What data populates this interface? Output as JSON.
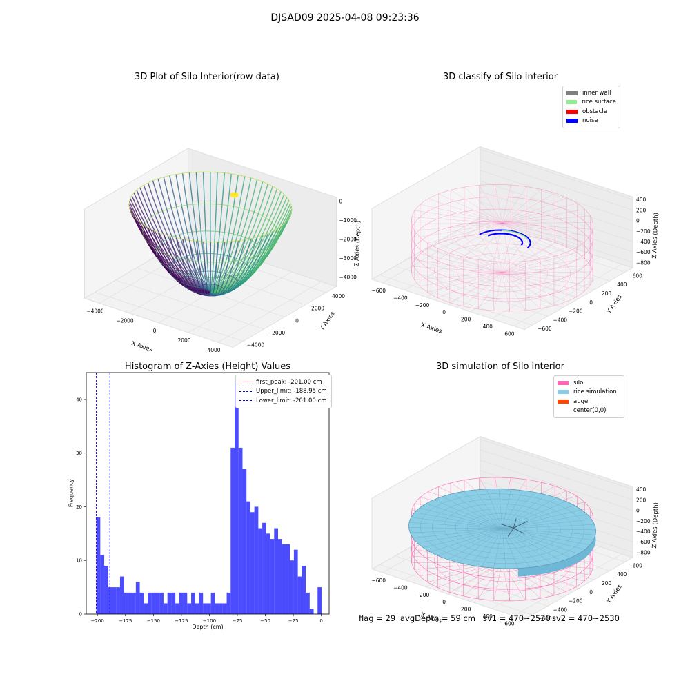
{
  "suptitle": "DJSAD09 2025-04-08 09:23:36",
  "footer": {
    "flag": "flag = 29",
    "avg_depth": "avgDepth = 59 cm",
    "sv1": "sv1 = 470~2530",
    "sv2": "sv2 = 470~2530"
  },
  "chart_data": [
    {
      "type": "scatter",
      "title": "3D Plot of Silo Interior(row data)",
      "xlabel": "X Axies",
      "ylabel": "Y Axies",
      "zlabel": "Z Axies (Depth)",
      "x_ticks": [
        "−4000",
        "−2000",
        "0",
        "2000",
        "4000"
      ],
      "y_ticks": [
        "−4000",
        "−2000",
        "0",
        "2000",
        "4000"
      ],
      "z_ticks": [
        "0",
        "−1000",
        "−2000",
        "−3000",
        "−4000"
      ],
      "xlim": [
        -5000,
        5000
      ],
      "ylim": [
        -5000,
        5000
      ],
      "zlim": [
        -4500,
        200
      ],
      "description_colormap": "viridis",
      "shape": "paraboloid bowl, rim radius about 4500, bottom about -4500"
    },
    {
      "type": "scatter",
      "title": "3D classify of Silo Interior",
      "xlabel": "X Axies",
      "ylabel": "Y Axies",
      "zlabel": "Z Axies (Depth)",
      "x_ticks": [
        "−600",
        "−400",
        "−200",
        "0",
        "200",
        "400",
        "600"
      ],
      "y_ticks": [
        "−600",
        "−400",
        "−200",
        "0",
        "200",
        "400",
        "600"
      ],
      "z_ticks": [
        "400",
        "200",
        "0",
        "−200",
        "−400",
        "−600",
        "−800"
      ],
      "xlim": [
        -700,
        700
      ],
      "ylim": [
        -700,
        700
      ],
      "zlim": [
        -900,
        450
      ],
      "legend": [
        {
          "label": "inner wall",
          "color": "#808080"
        },
        {
          "label": "rice surface",
          "color": "#90ee90"
        },
        {
          "label": "obstacle",
          "color": "#ff0000"
        },
        {
          "label": "noise",
          "color": "#0000ff"
        }
      ]
    },
    {
      "type": "bar",
      "title": "Histogram of Z-Axies (Height) Values",
      "xlabel": "Depth (cm)",
      "ylabel": "Frequency",
      "xlim": [
        -210,
        7
      ],
      "ylim": [
        0,
        45
      ],
      "x_ticks": [
        -200,
        -175,
        -150,
        -125,
        -100,
        -75,
        -50,
        -25,
        0
      ],
      "x_tick_labels": [
        "−200",
        "−175",
        "−150",
        "−125",
        "−100",
        "−75",
        "−50",
        "−25",
        "0"
      ],
      "y_ticks": [
        0,
        10,
        20,
        30,
        40
      ],
      "bin_start": -201.0,
      "bin_width": 1.0,
      "bar_color": "#0000ff",
      "values": [
        18,
        11,
        9,
        5,
        5,
        5,
        7,
        4,
        4,
        4,
        6,
        4,
        2,
        4,
        4,
        4,
        4,
        2,
        4,
        4,
        2,
        4,
        4,
        2,
        4,
        2,
        4,
        2,
        2,
        4,
        2,
        2,
        2,
        4,
        31,
        43,
        31,
        27,
        21,
        19,
        20,
        16,
        17,
        15,
        14,
        16,
        14,
        13,
        13,
        10,
        12,
        7,
        9,
        4,
        1,
        0,
        5
      ],
      "vlines": [
        {
          "label": "first_peak: -201.00 cm",
          "x": -201.0,
          "color": "#ff0000"
        },
        {
          "label": "Upper_limit: -188.95 cm",
          "x": -188.95,
          "color": "#0000ff"
        },
        {
          "label": "Lower_limit: -201.00 cm",
          "x": -201.0,
          "color": "#0000ff"
        }
      ]
    },
    {
      "type": "area",
      "title": "3D simulation of Silo Interior",
      "xlabel": "X Axies",
      "ylabel": "Y Axies",
      "zlabel": "Z Axies (Depth)",
      "x_ticks": [
        "−600",
        "−400",
        "−200",
        "0",
        "200",
        "400",
        "600"
      ],
      "y_ticks": [
        "−600",
        "−400",
        "−200",
        "0",
        "200",
        "400",
        "600"
      ],
      "z_ticks": [
        "400",
        "200",
        "0",
        "−200",
        "−400",
        "−600",
        "−800"
      ],
      "xlim": [
        -700,
        700
      ],
      "ylim": [
        -700,
        700
      ],
      "zlim": [
        -900,
        450
      ],
      "legend": [
        {
          "label": "silo",
          "color": "#ff69b4"
        },
        {
          "label": "rice simulation",
          "color": "#87ceeb"
        },
        {
          "label": "auger",
          "color": "#ff4500"
        },
        {
          "label": "center(0,0)",
          "color": "#ffffff"
        }
      ]
    }
  ]
}
